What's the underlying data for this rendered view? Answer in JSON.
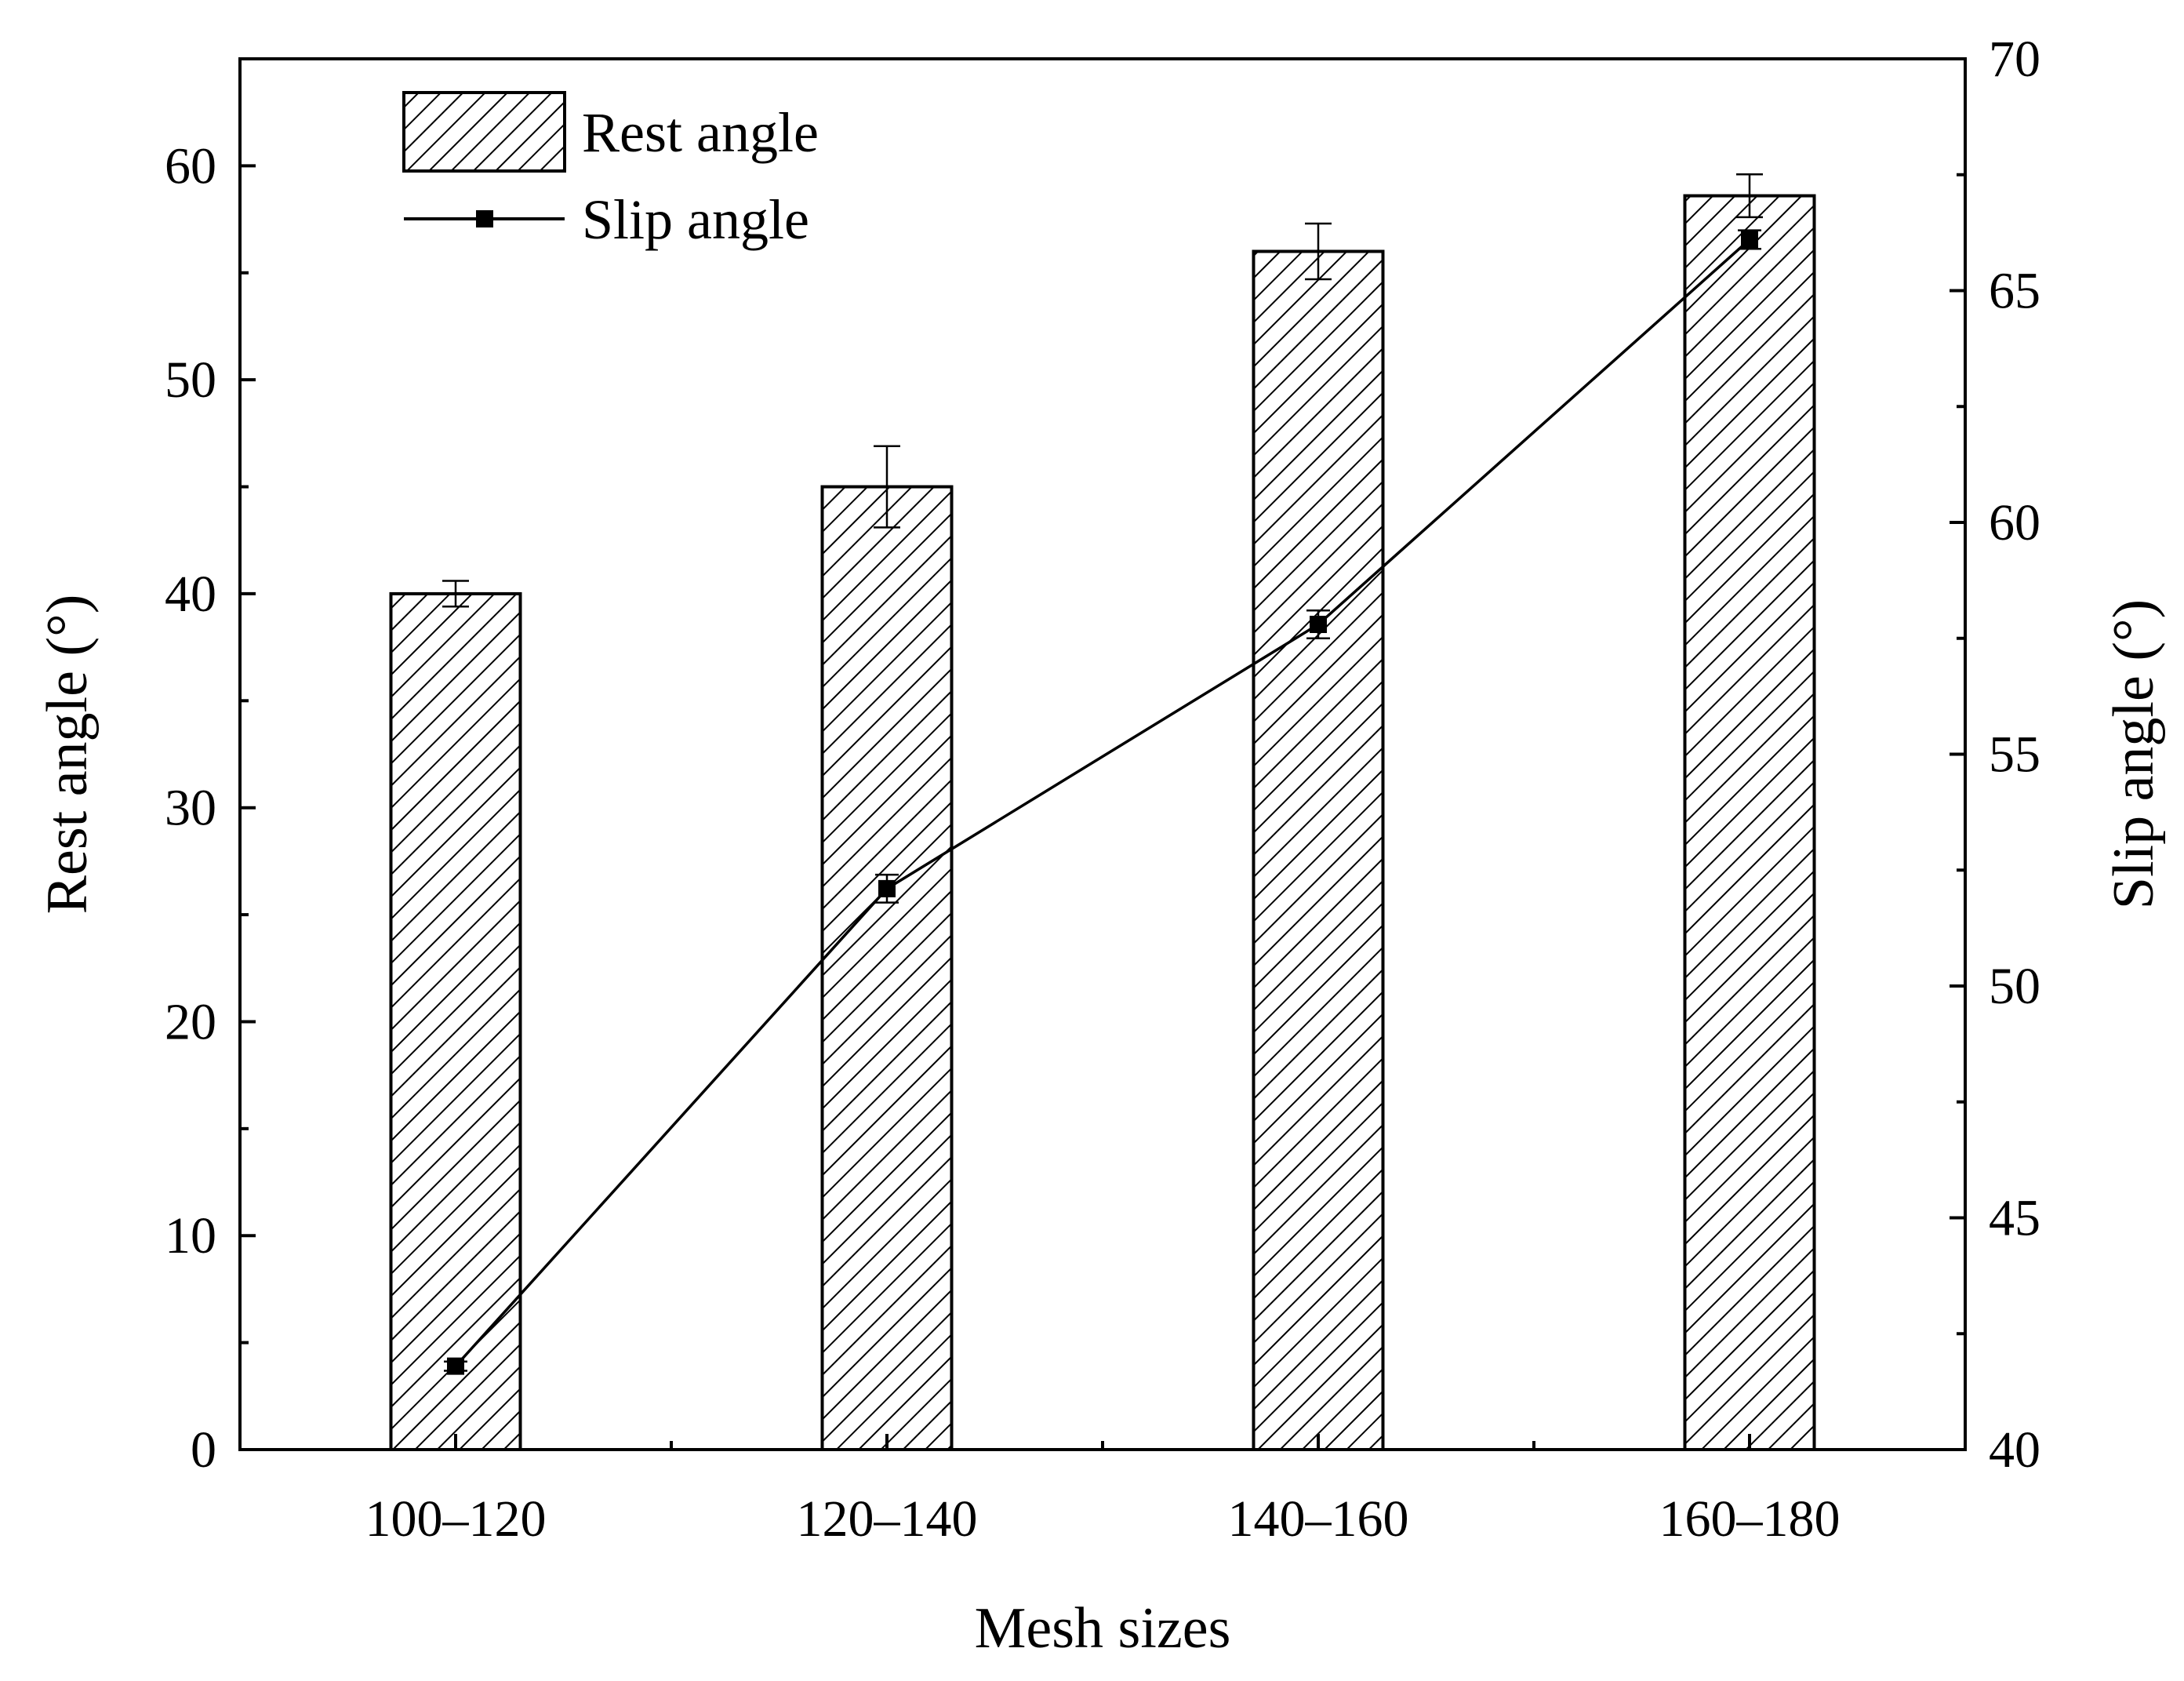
{
  "chart_data": {
    "type": "bar",
    "categories": [
      "100–120",
      "120–140",
      "140–160",
      "160–180"
    ],
    "xlabel": "Mesh sizes",
    "y_left": {
      "label": "Rest angle (°)",
      "range": [
        0,
        65
      ],
      "ticks": [
        0,
        10,
        20,
        30,
        40,
        50,
        60
      ]
    },
    "y_right": {
      "label": "Slip angle (°)",
      "range": [
        40,
        70
      ],
      "ticks": [
        40,
        45,
        50,
        55,
        60,
        65,
        70
      ]
    },
    "series": [
      {
        "name": "Rest angle",
        "type": "bar",
        "axis": "left",
        "pattern": "hatched",
        "values": [
          40.0,
          45.0,
          56.0,
          58.6
        ],
        "errors": [
          0.6,
          1.9,
          1.3,
          1.0
        ]
      },
      {
        "name": "Slip angle",
        "type": "line",
        "axis": "right",
        "marker": "square",
        "values": [
          41.8,
          52.1,
          57.8,
          66.1
        ],
        "errors": [
          0.1,
          0.3,
          0.3,
          0.2
        ]
      }
    ],
    "legend_position": "top-left",
    "grid": false
  }
}
